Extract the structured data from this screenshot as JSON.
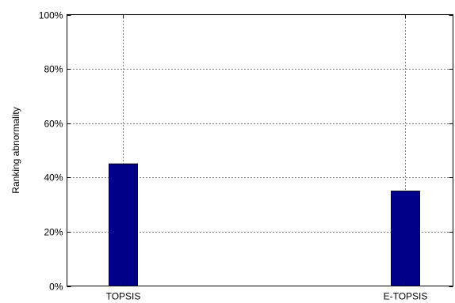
{
  "chart_data": {
    "type": "bar",
    "categories": [
      "TOPSIS",
      "E-TOPSIS"
    ],
    "values": [
      45,
      35
    ],
    "ylabel": "Ranking abnormality",
    "ylim": [
      0,
      100
    ],
    "yticks": [
      0,
      20,
      40,
      60,
      80,
      100
    ],
    "ytick_labels": [
      "0%",
      "20%",
      "40%",
      "60%",
      "80%",
      "100%"
    ],
    "grid": true,
    "bar_color": "#00008b"
  }
}
